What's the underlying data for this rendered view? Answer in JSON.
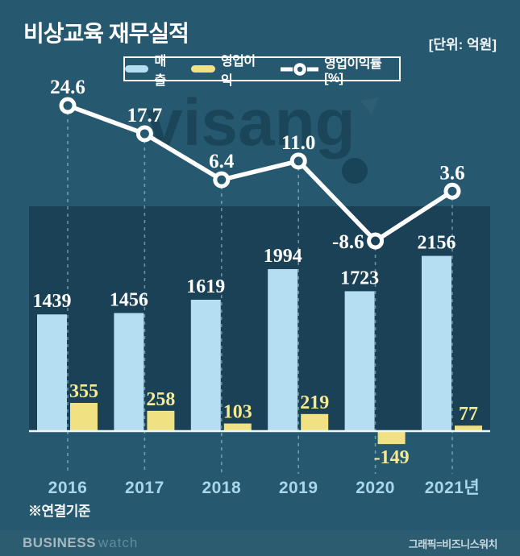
{
  "header": {
    "title": "비상교육 재무실적",
    "unit": "[단위: 억원]"
  },
  "legend": {
    "items": [
      {
        "label": "매출",
        "marker": "bar-swatch",
        "color": "#B5DEF2"
      },
      {
        "label": "영업이익",
        "marker": "bar-swatch",
        "color": "#F0E283"
      },
      {
        "label": "영업이익률[%]",
        "marker": "line-circle",
        "color": "#FFFFFF"
      }
    ]
  },
  "watermark": {
    "text": "visang"
  },
  "chart_data": {
    "type": "bar",
    "subtype": "grouped-bar-with-line",
    "title": "비상교육 재무실적",
    "unit": "억원",
    "categories": [
      "2016",
      "2017",
      "2018",
      "2019",
      "2020",
      "2021년"
    ],
    "series": [
      {
        "name": "매출",
        "type": "bar",
        "color": "#B5DEF2",
        "values": [
          1439,
          1456,
          1619,
          1994,
          1723,
          2156
        ],
        "labels": [
          "1439",
          "1456",
          "1619",
          "1994",
          "1723",
          "2156"
        ]
      },
      {
        "name": "영업이익",
        "type": "bar",
        "color": "#F0E283",
        "values": [
          355,
          258,
          103,
          219,
          -149,
          77
        ],
        "labels": [
          "355",
          "258",
          "103",
          "219",
          "-149",
          "77"
        ]
      },
      {
        "name": "영업이익률[%]",
        "type": "line",
        "color": "#FFFFFF",
        "values": [
          24.6,
          17.7,
          6.4,
          11.0,
          -8.6,
          3.6
        ],
        "labels": [
          "24.6",
          "17.7",
          "6.4",
          "11.0",
          "-8.6",
          "3.6"
        ]
      }
    ],
    "value_axis_visible": false,
    "gridlines": "dashed-vertical-per-category",
    "legend_position": "top-center",
    "baseline_value": 0
  },
  "footnote": "※연결기준",
  "footer": {
    "logo_primary": "BUSINESS",
    "logo_secondary": "watch",
    "credit": "그래픽=비즈니스워치"
  },
  "colors": {
    "background": "#26596F",
    "panel": "#1A4156",
    "footer_bar": "#2B5C70",
    "revenue_bar": "#B5DEF2",
    "profit_bar": "#F0E283",
    "profit_label": "#F4EA93",
    "line": "#FFFFFF",
    "baseline": "#F2F6F8",
    "dashed_guide": "rgba(170,212,230,0.55)",
    "year_label": "#A9D6EA",
    "value_label": "#FFFFFF"
  }
}
